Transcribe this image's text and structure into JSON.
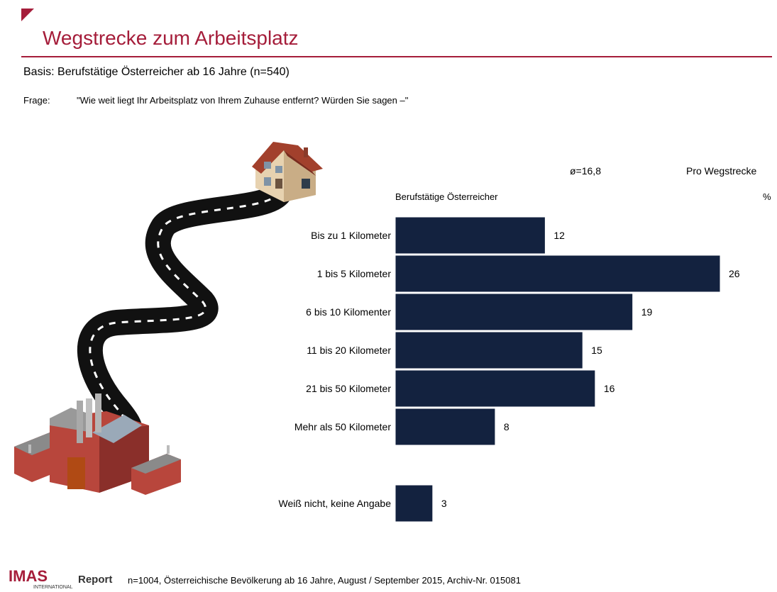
{
  "header": {
    "title": "Wegstrecke zum Arbeitsplatz",
    "basis": "Basis: Berufstätige Österreicher ab 16 Jahre (n=540)",
    "question_label": "Frage:",
    "question_text": "\"Wie weit liegt Ihr Arbeitsplatz von Ihrem Zuhause entfernt? Würden Sie sagen –\"",
    "accent_color": "#a51d3a"
  },
  "chart_data": {
    "type": "bar",
    "orientation": "horizontal",
    "average_label": "ø=16,8",
    "column_header": "Pro Wegstrecke",
    "series_label": "Berufstätige Österreicher",
    "unit_label": "%",
    "categories": [
      "Bis zu 1 Kilometer",
      "1 bis 5 Kilometer",
      "6 bis 10 Kilomenter",
      "11 bis 20 Kilometer",
      "21 bis 50 Kilometer",
      "Mehr als 50 Kilometer",
      "Weiß nicht, keine Angabe"
    ],
    "values": [
      12,
      26,
      19,
      15,
      16,
      8,
      3
    ],
    "value_labels": [
      "12",
      "26",
      "19",
      "15",
      "16",
      "8",
      "3"
    ],
    "xlim": [
      0,
      26
    ],
    "bar_color": "#13223f",
    "grid": false,
    "legend": "none"
  },
  "footer": {
    "logo_brand": "IMAS",
    "logo_sub": "INTERNATIONAL",
    "logo_report": "Report",
    "note": "n=1004, Österreichische Bevölkerung ab 16 Jahre, August / September 2015, Archiv-Nr. 015081"
  }
}
